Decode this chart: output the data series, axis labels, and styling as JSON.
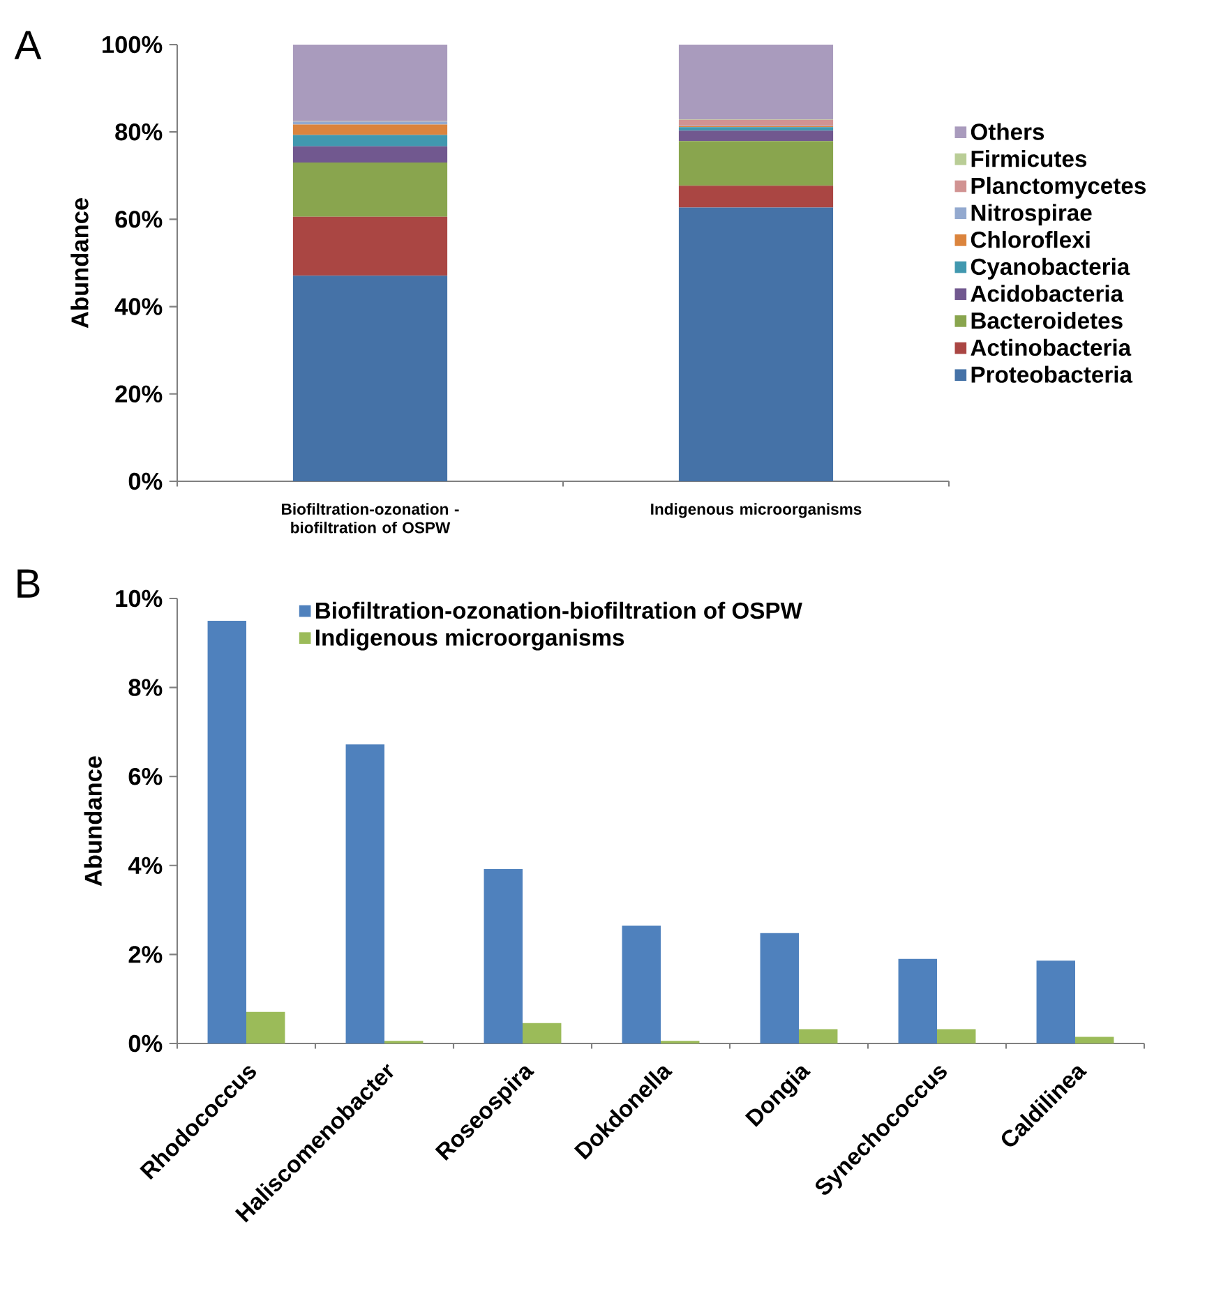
{
  "chart_data": [
    {
      "type": "bar",
      "stacked": true,
      "ylabel": "Abundance",
      "annotations": [
        "A"
      ],
      "legend": "right",
      "categories": [
        "Biofiltration-ozonation -biofiltration of OSPW",
        "Indigenous microorganisms"
      ],
      "ylim": [
        0,
        100
      ],
      "yticks": [
        {
          "value": 0,
          "label": "0%"
        },
        {
          "value": 20,
          "label": "20%"
        },
        {
          "value": 40,
          "label": "40%"
        },
        {
          "value": 60,
          "label": "60%"
        },
        {
          "value": 80,
          "label": "80%"
        },
        {
          "value": 100,
          "label": "100%"
        }
      ],
      "series": [
        {
          "name": "Proteobacteria",
          "color": "#4572a7",
          "values": [
            47.1,
            62.7
          ]
        },
        {
          "name": "Actinobacteria",
          "color": "#aa4643",
          "values": [
            13.5,
            5.0
          ]
        },
        {
          "name": "Bacteroidetes",
          "color": "#89a54e",
          "values": [
            12.4,
            10.2
          ]
        },
        {
          "name": "Acidobacteria",
          "color": "#71588f",
          "values": [
            3.7,
            2.4
          ]
        },
        {
          "name": "Cyanobacteria",
          "color": "#4198af",
          "values": [
            2.6,
            0.8
          ]
        },
        {
          "name": "Chloroflexi",
          "color": "#db843d",
          "values": [
            2.4,
            0.2
          ]
        },
        {
          "name": "Nitrospirae",
          "color": "#93a9cf",
          "values": [
            0.7,
            0.1
          ]
        },
        {
          "name": "Planctomycetes",
          "color": "#d19392",
          "values": [
            0.1,
            1.4
          ]
        },
        {
          "name": "Firmicutes",
          "color": "#b9cd96",
          "values": [
            0.1,
            0.1
          ]
        },
        {
          "name": "Others",
          "color": "#a99bbd",
          "values": [
            17.4,
            17.1
          ]
        }
      ]
    },
    {
      "type": "bar",
      "ylabel": "Abundance",
      "annotations": [
        "B"
      ],
      "legend": "top",
      "categories": [
        "Rhodococcus",
        "Haliscomenobacter",
        "Roseospira",
        "Dokdonella",
        "Dongia",
        "Synechococcus",
        "Caldilinea"
      ],
      "ylim": [
        0,
        10
      ],
      "yticks": [
        {
          "value": 0,
          "label": "0%"
        },
        {
          "value": 2,
          "label": "2%"
        },
        {
          "value": 4,
          "label": "4%"
        },
        {
          "value": 6,
          "label": "6%"
        },
        {
          "value": 8,
          "label": "8%"
        },
        {
          "value": 10,
          "label": "10%"
        }
      ],
      "series": [
        {
          "name": "Biofiltration-ozonation-biofiltration of OSPW",
          "color": "#4f81bd",
          "values": [
            9.5,
            6.72,
            3.92,
            2.65,
            2.48,
            1.9,
            1.86
          ]
        },
        {
          "name": "Indigenous microorganisms",
          "color": "#9bbb59",
          "values": [
            0.71,
            0.06,
            0.46,
            0.06,
            0.32,
            0.32,
            0.15
          ]
        }
      ]
    }
  ]
}
